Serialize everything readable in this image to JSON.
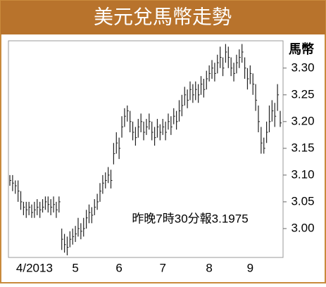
{
  "chart_data": {
    "type": "hlc",
    "title": "美元兌馬幣走勢",
    "y_label": "馬幣",
    "annotation": "昨晚7時30分報3.1975",
    "color": "#222222",
    "categories": [
      null,
      null,
      null,
      null,
      null,
      null,
      null,
      null,
      null,
      "4/2013",
      null,
      null,
      null,
      null,
      null,
      null,
      null,
      null,
      null,
      null,
      null,
      null,
      null,
      null,
      "5",
      null,
      null,
      null,
      null,
      null,
      null,
      null,
      null,
      null,
      null,
      null,
      null,
      null,
      null,
      null,
      "6",
      null,
      null,
      null,
      null,
      null,
      null,
      null,
      null,
      null,
      null,
      null,
      null,
      null,
      null,
      null,
      "7",
      null,
      null,
      null,
      null,
      null,
      null,
      null,
      null,
      null,
      null,
      null,
      null,
      null,
      null,
      null,
      null,
      "8",
      null,
      null,
      null,
      null,
      null,
      null,
      null,
      null,
      null,
      null,
      null,
      null,
      null,
      null,
      "9",
      null,
      null,
      null,
      null,
      null,
      null,
      null,
      null,
      null,
      null,
      null
    ],
    "high": [
      3.1,
      3.1,
      3.09,
      3.09,
      3.07,
      3.05,
      3.05,
      3.05,
      3.045,
      3.05,
      3.055,
      3.05,
      3.055,
      3.06,
      3.06,
      3.055,
      3.06,
      3.05,
      3.06,
      3.0,
      2.99,
      2.985,
      2.995,
      3.0,
      3.005,
      3.02,
      3.01,
      3.02,
      3.035,
      3.045,
      3.04,
      3.055,
      3.065,
      3.085,
      3.1,
      3.105,
      3.115,
      3.11,
      3.16,
      3.18,
      3.17,
      3.21,
      3.225,
      3.23,
      3.22,
      3.2,
      3.19,
      3.205,
      3.215,
      3.2,
      3.205,
      3.215,
      3.2,
      3.19,
      3.205,
      3.195,
      3.205,
      3.2,
      3.215,
      3.21,
      3.225,
      3.22,
      3.24,
      3.25,
      3.265,
      3.26,
      3.275,
      3.27,
      3.275,
      3.27,
      3.285,
      3.28,
      3.295,
      3.305,
      3.315,
      3.31,
      3.325,
      3.34,
      3.32,
      3.345,
      3.34,
      3.32,
      3.31,
      3.325,
      3.335,
      3.345,
      3.32,
      3.3,
      3.305,
      3.29,
      3.27,
      3.23,
      3.19,
      3.17,
      3.2,
      3.23,
      3.24,
      3.235,
      3.27,
      3.22
    ],
    "low": [
      3.08,
      3.07,
      3.065,
      3.05,
      3.035,
      3.025,
      3.02,
      3.025,
      3.02,
      3.02,
      3.025,
      3.02,
      3.03,
      3.035,
      3.03,
      3.025,
      3.03,
      3.02,
      3.03,
      2.96,
      2.955,
      2.95,
      2.965,
      2.97,
      2.975,
      2.985,
      2.98,
      2.985,
      3.0,
      3.01,
      3.01,
      3.025,
      3.035,
      3.05,
      3.065,
      3.075,
      3.085,
      3.075,
      3.12,
      3.14,
      3.13,
      3.17,
      3.19,
      3.2,
      3.18,
      3.165,
      3.155,
      3.17,
      3.18,
      3.165,
      3.175,
      3.185,
      3.165,
      3.155,
      3.17,
      3.165,
      3.175,
      3.165,
      3.185,
      3.175,
      3.195,
      3.185,
      3.2,
      3.21,
      3.23,
      3.225,
      3.24,
      3.235,
      3.24,
      3.235,
      3.25,
      3.245,
      3.26,
      3.275,
      3.28,
      3.275,
      3.29,
      3.3,
      3.285,
      3.31,
      3.3,
      3.285,
      3.275,
      3.29,
      3.3,
      3.31,
      3.28,
      3.26,
      3.27,
      3.25,
      3.22,
      3.18,
      3.14,
      3.14,
      3.16,
      3.18,
      3.2,
      3.19,
      3.22,
      3.19
    ],
    "close": [
      3.09,
      3.085,
      3.08,
      3.07,
      3.05,
      3.04,
      3.035,
      3.04,
      3.03,
      3.035,
      3.04,
      3.035,
      3.04,
      3.05,
      3.045,
      3.04,
      3.045,
      3.035,
      3.05,
      2.98,
      2.97,
      2.965,
      2.98,
      2.985,
      2.99,
      3.0,
      2.995,
      3.0,
      3.02,
      3.03,
      3.025,
      3.04,
      3.05,
      3.07,
      3.085,
      3.09,
      3.1,
      3.09,
      3.14,
      3.16,
      3.15,
      3.19,
      3.21,
      3.22,
      3.2,
      3.18,
      3.17,
      3.19,
      3.2,
      3.18,
      3.19,
      3.2,
      3.18,
      3.17,
      3.19,
      3.18,
      3.19,
      3.18,
      3.2,
      3.19,
      3.21,
      3.2,
      3.22,
      3.23,
      3.25,
      3.24,
      3.26,
      3.25,
      3.26,
      3.25,
      3.27,
      3.26,
      3.28,
      3.29,
      3.3,
      3.29,
      3.31,
      3.32,
      3.3,
      3.33,
      3.32,
      3.3,
      3.29,
      3.31,
      3.32,
      3.33,
      3.3,
      3.28,
      3.29,
      3.27,
      3.24,
      3.2,
      3.16,
      3.15,
      3.18,
      3.2,
      3.22,
      3.21,
      3.25,
      3.1975
    ],
    "ylim": [
      2.946,
      3.351
    ],
    "yticks": [
      {
        "value": 3.0,
        "label": "3.00"
      },
      {
        "value": 3.05,
        "label": "3.05"
      },
      {
        "value": 3.1,
        "label": "3.10"
      },
      {
        "value": 3.15,
        "label": "3.15"
      },
      {
        "value": 3.2,
        "label": "3.20"
      },
      {
        "value": 3.25,
        "label": "3.25"
      },
      {
        "value": 3.3,
        "label": "3.30"
      }
    ]
  }
}
